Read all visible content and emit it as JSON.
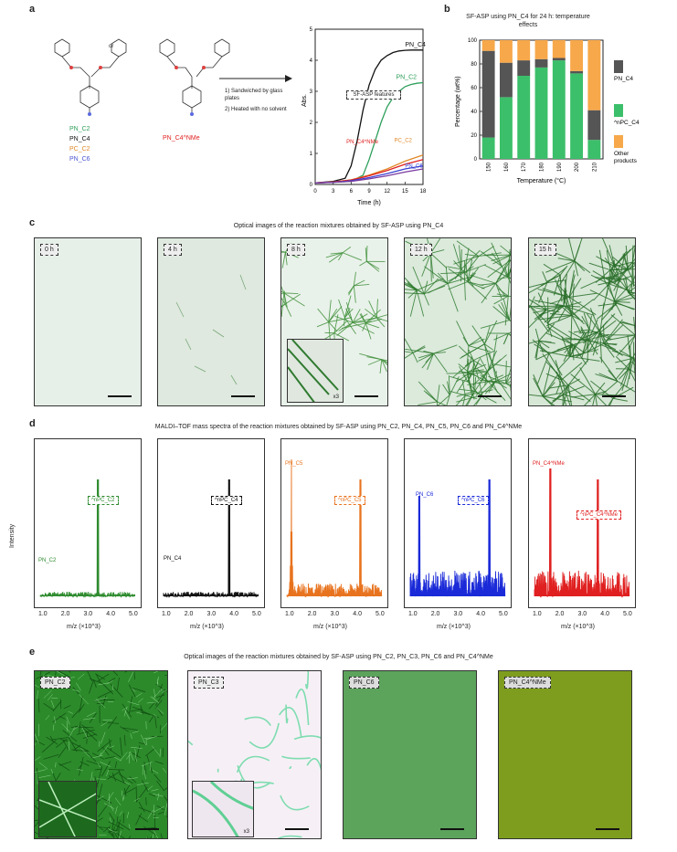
{
  "panel_a": {
    "label": "a",
    "step1": "1)  Sandwiched by glass plates",
    "step2": "2)  Heated with no solvent",
    "or1": "or",
    "monomers": [
      {
        "name": "PN_C2",
        "color": "#2e9e5a"
      },
      {
        "name": "PN_C4",
        "color": "#111111"
      },
      {
        "name": "PC_C2",
        "color": "#e08a2a"
      },
      {
        "name": "PN_C6",
        "color": "#4a55d0"
      }
    ],
    "pn_nme": "PN_C4^NMe",
    "chart_annotation": "SF-ASP features"
  },
  "panel_b": {
    "label": "b",
    "title": "SF-ASP using PN_C4 for 24 h: temperature effects"
  },
  "panel_c": {
    "label": "c",
    "caption": "Optical images of the reaction mixtures obtained by SF-ASP using PN_C4",
    "tiles": [
      "0 h",
      "4 h",
      "8 h",
      "12 h",
      "15 h"
    ],
    "inset_label": "x3"
  },
  "panel_d": {
    "label": "d",
    "caption": "MALDI–TOF mass spectra of the reaction mixtures obtained by SF-ASP using PN_C2, PN_C4, PN_C5, PN_C6 and PN_C4^NMe",
    "ylabel": "Intensity",
    "xlabel": "m/z (×10^3)",
    "ticks": [
      "1.0",
      "2.0",
      "3.0",
      "4.0",
      "5.0"
    ],
    "spectra": [
      {
        "color": "#2e8b2e",
        "monomer": "PN_C2",
        "product": "^nPC_C2"
      },
      {
        "color": "#111111",
        "monomer": "PN_C4",
        "product": "^nPC_C4"
      },
      {
        "color": "#e8731e",
        "monomer": "PN_C5",
        "product": "^nPC_C5"
      },
      {
        "color": "#1a2ad8",
        "monomer": "PN_C6",
        "product": "^nPC_C6"
      },
      {
        "color": "#e02020",
        "monomer": "PN_C4^NMe",
        "product": "^nPC_C4^NMe"
      }
    ]
  },
  "panel_e": {
    "label": "e",
    "caption": "Optical images of the reaction mixtures obtained by SF-ASP using PN_C2, PN_C3, PN_C6 and PN_C4^NMe",
    "tiles": [
      "PN_C2",
      "PN_C3",
      "PN_C6",
      "PN_C4^NMe"
    ],
    "inset_label": "x3"
  },
  "chart_data": [
    {
      "type": "line",
      "xlabel": "Time (h)",
      "ylabel": "Abs.",
      "xlim": [
        0,
        18
      ],
      "ylim": [
        0,
        5
      ],
      "xticks": [
        0,
        3,
        6,
        9,
        12,
        15,
        18
      ],
      "yticks": [
        0,
        1,
        2,
        3,
        4,
        5
      ],
      "series": [
        {
          "name": "PN_C4",
          "color": "#111111",
          "x": [
            0,
            3,
            5,
            6,
            7,
            8,
            9,
            10,
            11,
            12,
            13,
            14,
            15,
            16,
            17,
            18
          ],
          "y": [
            0.05,
            0.1,
            0.2,
            0.6,
            1.4,
            2.4,
            3.2,
            3.7,
            4.0,
            4.15,
            4.25,
            4.3,
            4.32,
            4.33,
            4.33,
            4.33
          ]
        },
        {
          "name": "PN_C2",
          "color": "#2e9e5a",
          "x": [
            0,
            3,
            6,
            8,
            9,
            10,
            11,
            12,
            13,
            14,
            15,
            16,
            17,
            18
          ],
          "y": [
            0.05,
            0.07,
            0.1,
            0.3,
            0.8,
            1.4,
            2.0,
            2.5,
            2.8,
            3.0,
            3.15,
            3.22,
            3.26,
            3.28
          ]
        },
        {
          "name": "PC_C2",
          "color": "#e08a2a",
          "x": [
            0,
            3,
            6,
            9,
            12,
            15,
            18
          ],
          "y": [
            0.05,
            0.08,
            0.15,
            0.3,
            0.5,
            0.75,
            0.95
          ]
        },
        {
          "name": "PN_C4^NMe",
          "color": "#e02020",
          "x": [
            0,
            3,
            6,
            9,
            12,
            15,
            18
          ],
          "y": [
            0.05,
            0.08,
            0.14,
            0.28,
            0.45,
            0.65,
            0.8
          ]
        },
        {
          "name": "PN_C6",
          "color": "#3a40d0",
          "x": [
            0,
            3,
            6,
            9,
            12,
            15,
            18
          ],
          "y": [
            0.05,
            0.07,
            0.12,
            0.22,
            0.35,
            0.5,
            0.6
          ]
        },
        {
          "name": "",
          "color": "#7a3aa0",
          "x": [
            0,
            3,
            6,
            9,
            12,
            15,
            18
          ],
          "y": [
            0.05,
            0.07,
            0.1,
            0.18,
            0.28,
            0.4,
            0.5
          ]
        }
      ]
    },
    {
      "type": "bar",
      "title": "SF-ASP using PN_C4 for 24 h: temperature effects",
      "xlabel": "Temperature (°C)",
      "ylabel": "Percentage (wt%)",
      "ylim": [
        0,
        100
      ],
      "yticks": [
        0,
        20,
        40,
        60,
        80,
        100
      ],
      "categories": [
        "150",
        "160",
        "170",
        "180",
        "190",
        "200",
        "210"
      ],
      "series": [
        {
          "name": "^nPC_C4",
          "color": "#3cbf6a",
          "values": [
            18,
            52,
            70,
            77,
            83,
            72,
            16
          ]
        },
        {
          "name": "PN_C4",
          "color": "#555555",
          "values": [
            73,
            29,
            13,
            7,
            2,
            2,
            25
          ]
        },
        {
          "name": "Other products",
          "color": "#f7a84a",
          "values": [
            9,
            19,
            17,
            16,
            15,
            26,
            59
          ]
        }
      ]
    }
  ]
}
